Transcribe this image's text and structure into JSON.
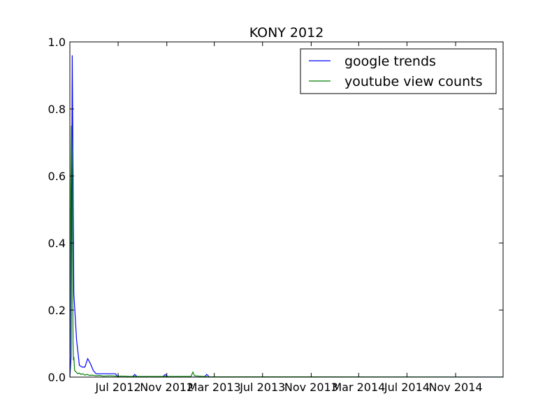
{
  "chart_data": {
    "type": "line",
    "title": "KONY 2012",
    "xlabel": "",
    "ylabel": "",
    "x_axis": "date",
    "xlim": [
      "2012-03-01",
      "2015-03-01"
    ],
    "ylim": [
      0,
      1.0
    ],
    "yticks": [
      0.0,
      0.2,
      0.4,
      0.6,
      0.8,
      1.0
    ],
    "ytick_labels": [
      "0.0",
      "0.2",
      "0.4",
      "0.6",
      "0.8",
      "1.0"
    ],
    "xticks": [
      "2012-07-01",
      "2012-11-01",
      "2013-03-01",
      "2013-07-01",
      "2013-11-01",
      "2014-03-01",
      "2014-07-01",
      "2014-11-01"
    ],
    "xtick_labels": [
      "Jul 2012",
      "Nov 2012",
      "Mar 2013",
      "Jul 2013",
      "Nov 2013",
      "Mar 2014",
      "Jul 2014",
      "Nov 2014"
    ],
    "grid": false,
    "legend_position": "top-right",
    "series": [
      {
        "name": "google trends",
        "color": "#0000ff",
        "points": [
          [
            "2012-03-01",
            0.0
          ],
          [
            "2012-03-04",
            0.06
          ],
          [
            "2012-03-07",
            0.96
          ],
          [
            "2012-03-11",
            0.25
          ],
          [
            "2012-03-18",
            0.11
          ],
          [
            "2012-03-25",
            0.035
          ],
          [
            "2012-04-01",
            0.03
          ],
          [
            "2012-04-08",
            0.03
          ],
          [
            "2012-04-15",
            0.055
          ],
          [
            "2012-04-22",
            0.04
          ],
          [
            "2012-04-29",
            0.02
          ],
          [
            "2012-05-06",
            0.01
          ],
          [
            "2012-05-13",
            0.01
          ],
          [
            "2012-06-10",
            0.01
          ],
          [
            "2012-06-17",
            0.01
          ],
          [
            "2012-06-24",
            0.01
          ],
          [
            "2012-07-01",
            0.0
          ],
          [
            "2012-08-05",
            0.0
          ],
          [
            "2012-08-12",
            0.008
          ],
          [
            "2012-08-19",
            0.0
          ],
          [
            "2012-10-21",
            0.0
          ],
          [
            "2012-10-28",
            0.008
          ],
          [
            "2012-11-04",
            0.0
          ],
          [
            "2013-02-03",
            0.0
          ],
          [
            "2013-02-10",
            0.008
          ],
          [
            "2013-02-17",
            0.0
          ],
          [
            "2015-02-28",
            0.0
          ]
        ]
      },
      {
        "name": "youtube view counts",
        "color": "#008000",
        "points": [
          [
            "2012-03-01",
            0.0
          ],
          [
            "2012-03-03",
            0.5
          ],
          [
            "2012-03-05",
            0.75
          ],
          [
            "2012-03-07",
            0.6
          ],
          [
            "2012-03-09",
            0.1
          ],
          [
            "2012-03-10",
            0.05
          ],
          [
            "2012-03-11",
            0.06
          ],
          [
            "2012-03-13",
            0.02
          ],
          [
            "2012-03-17",
            0.015
          ],
          [
            "2012-03-21",
            0.01
          ],
          [
            "2012-03-25",
            0.012
          ],
          [
            "2012-03-29",
            0.008
          ],
          [
            "2012-04-02",
            0.01
          ],
          [
            "2012-04-08",
            0.006
          ],
          [
            "2012-04-14",
            0.008
          ],
          [
            "2012-04-20",
            0.005
          ],
          [
            "2012-04-26",
            0.006
          ],
          [
            "2012-05-05",
            0.004
          ],
          [
            "2012-05-15",
            0.005
          ],
          [
            "2012-05-25",
            0.003
          ],
          [
            "2012-06-10",
            0.004
          ],
          [
            "2012-06-25",
            0.003
          ],
          [
            "2012-07-10",
            0.003
          ],
          [
            "2012-08-01",
            0.002
          ],
          [
            "2012-09-01",
            0.002
          ],
          [
            "2012-10-01",
            0.002
          ],
          [
            "2012-11-01",
            0.002
          ],
          [
            "2012-12-01",
            0.002
          ],
          [
            "2013-01-01",
            0.002
          ],
          [
            "2013-01-06",
            0.015
          ],
          [
            "2013-01-10",
            0.004
          ],
          [
            "2013-01-20",
            0.003
          ],
          [
            "2013-02-01",
            0.002
          ],
          [
            "2013-02-10",
            0.001
          ],
          [
            "2015-02-28",
            0.0
          ]
        ]
      }
    ]
  }
}
